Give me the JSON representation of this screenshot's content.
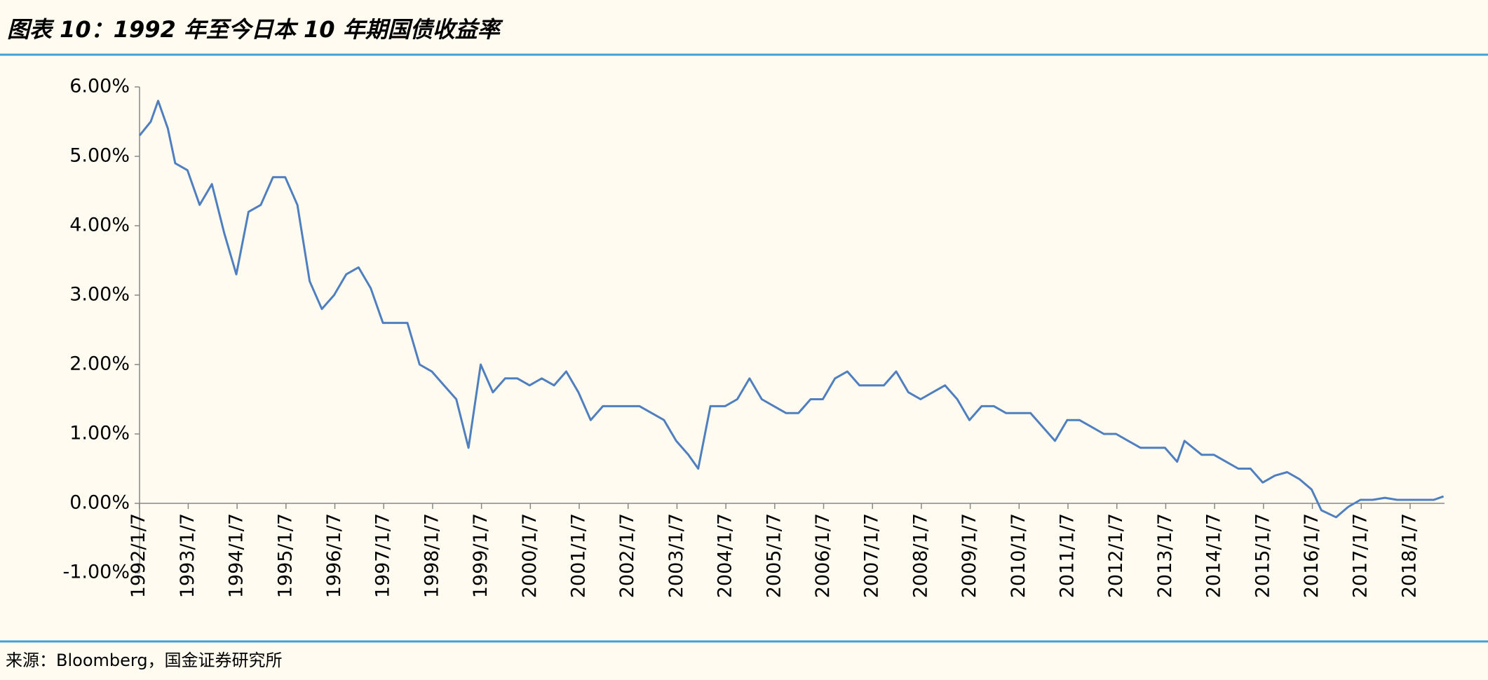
{
  "chart_data": {
    "type": "line",
    "title": "图表 10：1992 年至今日本 10 年期国债收益率",
    "source": "来源：Bloomberg，国金证券研究所",
    "x": [
      1992.02,
      1992.25,
      1992.4,
      1992.6,
      1992.75,
      1993.0,
      1993.25,
      1993.5,
      1993.75,
      1994.0,
      1994.25,
      1994.5,
      1994.75,
      1995.0,
      1995.25,
      1995.5,
      1995.75,
      1996.0,
      1996.25,
      1996.5,
      1996.75,
      1997.0,
      1997.25,
      1997.5,
      1997.75,
      1998.0,
      1998.25,
      1998.5,
      1998.75,
      1999.0,
      1999.25,
      1999.5,
      1999.75,
      2000.0,
      2000.25,
      2000.5,
      2000.75,
      2001.0,
      2001.25,
      2001.5,
      2001.75,
      2002.0,
      2002.25,
      2002.5,
      2002.75,
      2003.0,
      2003.25,
      2003.45,
      2003.7,
      2004.0,
      2004.25,
      2004.5,
      2004.75,
      2005.0,
      2005.25,
      2005.5,
      2005.75,
      2006.0,
      2006.25,
      2006.5,
      2006.75,
      2007.0,
      2007.25,
      2007.5,
      2007.75,
      2008.0,
      2008.25,
      2008.5,
      2008.75,
      2009.0,
      2009.25,
      2009.5,
      2009.75,
      2010.0,
      2010.25,
      2010.5,
      2010.75,
      2011.0,
      2011.25,
      2011.5,
      2011.75,
      2012.0,
      2012.25,
      2012.5,
      2012.75,
      2013.0,
      2013.25,
      2013.4,
      2013.75,
      2014.0,
      2014.25,
      2014.5,
      2014.75,
      2015.0,
      2015.25,
      2015.5,
      2015.75,
      2016.0,
      2016.2,
      2016.5,
      2016.75,
      2017.0,
      2017.25,
      2017.5,
      2017.75,
      2018.0,
      2018.25,
      2018.5,
      2018.7
    ],
    "series": [
      {
        "color": "#4f7fbf",
        "values": [
          5.3,
          5.5,
          5.8,
          5.4,
          4.9,
          4.8,
          4.3,
          4.6,
          3.9,
          3.3,
          4.2,
          4.3,
          4.7,
          4.7,
          4.3,
          3.2,
          2.8,
          3.0,
          3.3,
          3.4,
          3.1,
          2.6,
          2.6,
          2.6,
          2.0,
          1.9,
          1.7,
          1.5,
          0.8,
          2.0,
          1.6,
          1.8,
          1.8,
          1.7,
          1.8,
          1.7,
          1.9,
          1.6,
          1.2,
          1.4,
          1.4,
          1.4,
          1.4,
          1.3,
          1.2,
          0.9,
          0.7,
          0.5,
          1.4,
          1.4,
          1.5,
          1.8,
          1.5,
          1.4,
          1.3,
          1.3,
          1.5,
          1.5,
          1.8,
          1.9,
          1.7,
          1.7,
          1.7,
          1.9,
          1.6,
          1.5,
          1.6,
          1.7,
          1.5,
          1.2,
          1.4,
          1.4,
          1.3,
          1.3,
          1.3,
          1.1,
          0.9,
          1.2,
          1.2,
          1.1,
          1.0,
          1.0,
          0.9,
          0.8,
          0.8,
          0.8,
          0.6,
          0.9,
          0.7,
          0.7,
          0.6,
          0.5,
          0.5,
          0.3,
          0.4,
          0.45,
          0.35,
          0.2,
          -0.1,
          -0.2,
          -0.05,
          0.05,
          0.05,
          0.08,
          0.05,
          0.05,
          0.05,
          0.05,
          0.1
        ]
      }
    ],
    "xlim": [
      1992.02,
      2018.72
    ],
    "xticks": [
      {
        "value": 1992.016,
        "label": "1992/1/7"
      },
      {
        "value": 1993.016,
        "label": "1993/1/7"
      },
      {
        "value": 1994.016,
        "label": "1994/1/7"
      },
      {
        "value": 1995.016,
        "label": "1995/1/7"
      },
      {
        "value": 1996.016,
        "label": "1996/1/7"
      },
      {
        "value": 1997.016,
        "label": "1997/1/7"
      },
      {
        "value": 1998.016,
        "label": "1998/1/7"
      },
      {
        "value": 1999.016,
        "label": "1999/1/7"
      },
      {
        "value": 2000.016,
        "label": "2000/1/7"
      },
      {
        "value": 2001.016,
        "label": "2001/1/7"
      },
      {
        "value": 2002.016,
        "label": "2002/1/7"
      },
      {
        "value": 2003.016,
        "label": "2003/1/7"
      },
      {
        "value": 2004.016,
        "label": "2004/1/7"
      },
      {
        "value": 2005.016,
        "label": "2005/1/7"
      },
      {
        "value": 2006.016,
        "label": "2006/1/7"
      },
      {
        "value": 2007.016,
        "label": "2007/1/7"
      },
      {
        "value": 2008.016,
        "label": "2008/1/7"
      },
      {
        "value": 2009.016,
        "label": "2009/1/7"
      },
      {
        "value": 2010.016,
        "label": "2010/1/7"
      },
      {
        "value": 2011.016,
        "label": "2011/1/7"
      },
      {
        "value": 2012.016,
        "label": "2012/1/7"
      },
      {
        "value": 2013.016,
        "label": "2013/1/7"
      },
      {
        "value": 2014.016,
        "label": "2014/1/7"
      },
      {
        "value": 2015.016,
        "label": "2015/1/7"
      },
      {
        "value": 2016.016,
        "label": "2016/1/7"
      },
      {
        "value": 2017.016,
        "label": "2017/1/7"
      },
      {
        "value": 2018.016,
        "label": "2018/1/7"
      }
    ],
    "ylim": [
      -1,
      6
    ],
    "yticks": [
      {
        "value": -1,
        "label": "-1.00%"
      },
      {
        "value": 0,
        "label": "0.00%"
      },
      {
        "value": 1,
        "label": "1.00%"
      },
      {
        "value": 2,
        "label": "2.00%"
      },
      {
        "value": 3,
        "label": "3.00%"
      },
      {
        "value": 4,
        "label": "4.00%"
      },
      {
        "value": 5,
        "label": "5.00%"
      },
      {
        "value": 6,
        "label": "6.00%"
      }
    ]
  }
}
